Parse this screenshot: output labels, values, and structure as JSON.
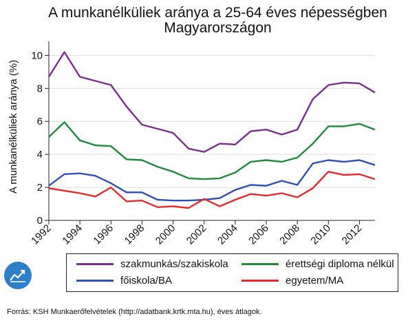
{
  "title_line1": "A munkanélküliek aránya a 25-64 éves népességben",
  "title_line2": "Magyarországon",
  "source": "Forrás: KSH Munkaerőfelvételek (http://adatbank.krtk.mta.hu), éves átlagok.",
  "logo_icon": "trend-chart-icon",
  "chart_data": {
    "type": "line",
    "ylabel": "A munkanélküliek aránya (%)",
    "xlabel": "",
    "x": [
      1992,
      1993,
      1994,
      1995,
      1996,
      1997,
      1998,
      1999,
      2000,
      2001,
      2002,
      2003,
      2004,
      2005,
      2006,
      2007,
      2008,
      2009,
      2010,
      2011,
      2012,
      2013
    ],
    "xticks": [
      1992,
      1994,
      1996,
      1998,
      2000,
      2002,
      2004,
      2006,
      2008,
      2010,
      2012
    ],
    "yticks": [
      0,
      2,
      4,
      6,
      8,
      10
    ],
    "xlim": [
      1992,
      2013
    ],
    "ylim": [
      0,
      10.6
    ],
    "grid": "horizontal",
    "legend_position": "bottom",
    "series": [
      {
        "name": "szakmunkás/szakiskola",
        "color": "#7b2d8e",
        "values": [
          8.7,
          10.2,
          8.7,
          8.45,
          8.2,
          6.9,
          5.8,
          5.55,
          5.3,
          4.35,
          4.15,
          4.65,
          4.6,
          5.4,
          5.5,
          5.2,
          5.5,
          7.35,
          8.2,
          8.35,
          8.3,
          7.75
        ]
      },
      {
        "name": "érettségi diploma nélkül",
        "color": "#1f8a3c",
        "values": [
          5.05,
          5.95,
          4.85,
          4.55,
          4.5,
          3.7,
          3.65,
          3.25,
          2.95,
          2.55,
          2.5,
          2.55,
          2.9,
          3.55,
          3.65,
          3.55,
          3.8,
          4.65,
          5.7,
          5.7,
          5.85,
          5.5
        ]
      },
      {
        "name": "főiskola/BA",
        "color": "#2f4fb8",
        "values": [
          2.1,
          2.8,
          2.85,
          2.7,
          2.25,
          1.7,
          1.7,
          1.25,
          1.2,
          1.2,
          1.25,
          1.35,
          1.85,
          2.15,
          2.1,
          2.4,
          2.15,
          3.45,
          3.65,
          3.55,
          3.65,
          3.35
        ]
      },
      {
        "name": "egyetem/MA",
        "color": "#e8272b",
        "values": [
          1.95,
          1.8,
          1.65,
          1.45,
          2.0,
          1.15,
          1.2,
          0.8,
          0.85,
          0.75,
          1.3,
          0.85,
          1.25,
          1.6,
          1.5,
          1.65,
          1.4,
          1.95,
          2.95,
          2.75,
          2.8,
          2.5
        ]
      }
    ]
  }
}
